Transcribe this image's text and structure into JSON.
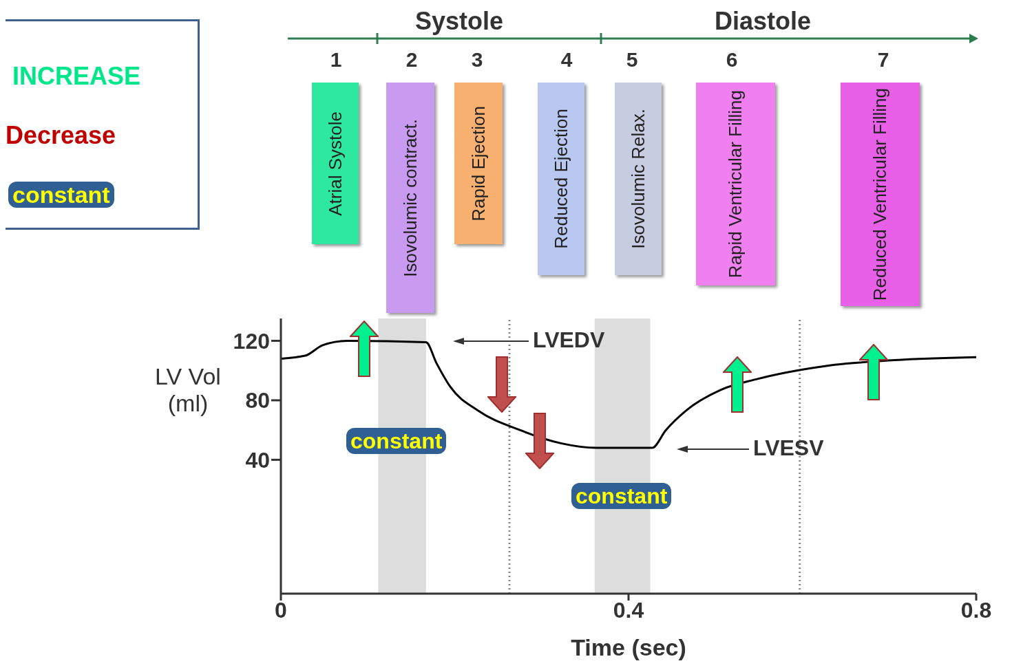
{
  "chart_data": {
    "type": "line",
    "xlabel": "Time (sec)",
    "ylabel": "LV Vol (ml)",
    "x": [
      0,
      0.028,
      0.048,
      0.076,
      0.167,
      0.179,
      0.195,
      0.227,
      0.275,
      0.323,
      0.363,
      0.427,
      0.443,
      0.466,
      0.506,
      0.546,
      0.626,
      0.706,
      0.8
    ],
    "values": [
      108,
      110,
      117,
      120,
      119,
      105,
      89,
      73,
      60,
      51,
      48,
      48,
      60,
      73,
      87,
      94,
      103,
      107,
      109
    ],
    "color": "#000000",
    "xlim": [
      0,
      0.8
    ],
    "xticks": [
      0,
      0.4,
      0.8
    ],
    "ylim": [
      -50,
      135
    ],
    "yticks": [
      40,
      80,
      120
    ],
    "bands": [
      {
        "axis": "x",
        "from": 0.112,
        "to": 0.167,
        "color": "#dddddd"
      },
      {
        "axis": "x",
        "from": 0.361,
        "to": 0.425,
        "color": "#dddddd"
      }
    ],
    "ref_lines": [
      {
        "axis": "x",
        "value": 0.263,
        "color": "#888888",
        "line_style": "dotted"
      },
      {
        "axis": "x",
        "value": 0.597,
        "color": "#888888",
        "line_style": "dotted"
      }
    ],
    "annotations": [
      "INCREASE",
      "Decrease",
      "constant",
      "Systole",
      "Diastole",
      "1",
      "2",
      "3",
      "4",
      "5",
      "6",
      "7",
      "Atrial Systole",
      "Isovolumic contract.",
      "Rapid Ejection",
      "Reduced Ejection",
      "Isovolumic Relax.",
      "Rapid Ventricular Filling",
      "Reduced Ventricular Filling",
      "LVEDV",
      "LVESV",
      "constant",
      "constant"
    ]
  }
}
